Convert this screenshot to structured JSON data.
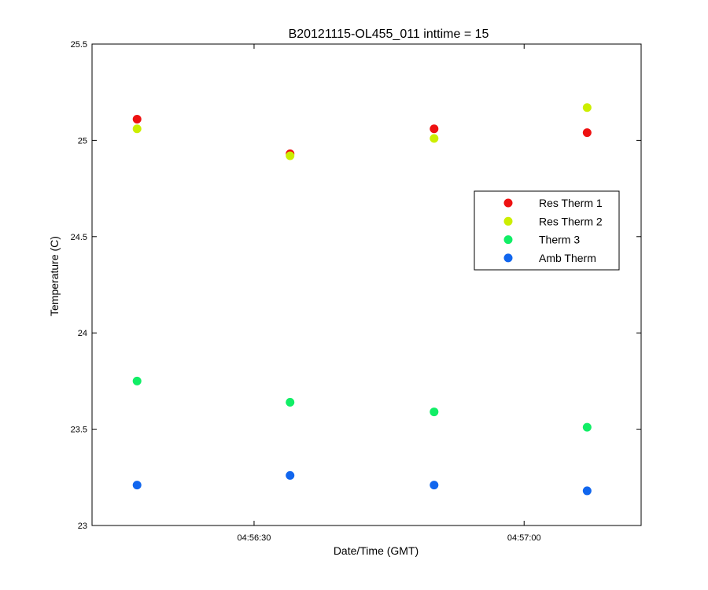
{
  "chart_data": {
    "type": "scatter",
    "title": "B20121115-OL455_011 inttime = 15",
    "xlabel": "Date/Time (GMT)",
    "ylabel": "Temperature (C)",
    "xlim": [
      "04:56:12",
      "04:57:13"
    ],
    "ylim": [
      23,
      25.5
    ],
    "xticks": [
      "04:56:30",
      "04:57:00"
    ],
    "yticks": [
      "23",
      "23.5",
      "24",
      "24.5",
      "25",
      "25.5"
    ],
    "grid": false,
    "legend_position": "right",
    "series": [
      {
        "name": "Res Therm 1",
        "color": "#ee1111",
        "points": [
          {
            "x": "04:56:17",
            "y": 25.11
          },
          {
            "x": "04:56:34",
            "y": 24.93
          },
          {
            "x": "04:56:50",
            "y": 25.06
          },
          {
            "x": "04:57:07",
            "y": 25.04
          }
        ]
      },
      {
        "name": "Res Therm 2",
        "color": "#ccee00",
        "points": [
          {
            "x": "04:56:17",
            "y": 25.06
          },
          {
            "x": "04:56:34",
            "y": 24.92
          },
          {
            "x": "04:56:50",
            "y": 25.01
          },
          {
            "x": "04:57:07",
            "y": 25.17
          }
        ]
      },
      {
        "name": "Therm 3",
        "color": "#11ee66",
        "points": [
          {
            "x": "04:56:17",
            "y": 23.75
          },
          {
            "x": "04:56:34",
            "y": 23.64
          },
          {
            "x": "04:56:50",
            "y": 23.59
          },
          {
            "x": "04:57:07",
            "y": 23.51
          }
        ]
      },
      {
        "name": "Amb Therm",
        "color": "#1166ee",
        "points": [
          {
            "x": "04:56:17",
            "y": 23.21
          },
          {
            "x": "04:56:34",
            "y": 23.26
          },
          {
            "x": "04:56:50",
            "y": 23.21
          },
          {
            "x": "04:57:07",
            "y": 23.18
          }
        ]
      }
    ]
  }
}
